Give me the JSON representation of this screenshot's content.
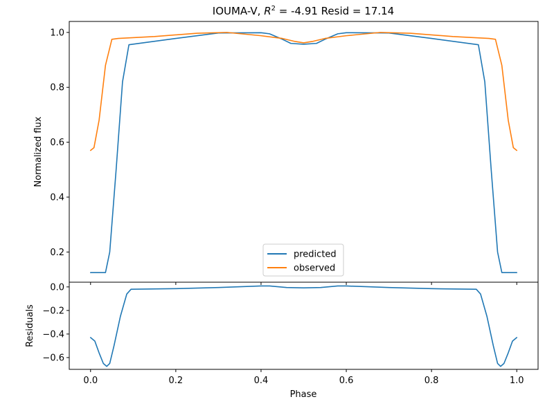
{
  "chart_data": [
    {
      "type": "line",
      "title": {
        "prefix": "IOUMA-V, ",
        "r_symbol": "R",
        "r_exponent": "2",
        "suffix": " = -4.91 Resid = 17.14"
      },
      "ylabel": "Normalized flux",
      "xlim": [
        -0.05,
        1.05
      ],
      "ylim": [
        0.09,
        1.04
      ],
      "x_ticks": [
        0.0,
        0.2,
        0.4,
        0.6,
        0.8,
        1.0
      ],
      "x_tick_labels": [
        "0.0",
        "0.2",
        "0.4",
        "0.6",
        "0.8",
        "1.0"
      ],
      "y_ticks": [
        0.2,
        0.4,
        0.6,
        0.8,
        1.0
      ],
      "y_tick_labels": [
        "0.2",
        "0.4",
        "0.6",
        "0.8",
        "1.0"
      ],
      "grid": false,
      "legend_position": "bottom-center",
      "series": [
        {
          "name": "predicted",
          "color": "#1f77b4",
          "x": [
            0.0,
            0.035,
            0.045,
            0.06,
            0.075,
            0.09,
            0.2,
            0.3,
            0.4,
            0.42,
            0.45,
            0.47,
            0.5,
            0.53,
            0.55,
            0.58,
            0.6,
            0.7,
            0.8,
            0.91,
            0.925,
            0.94,
            0.955,
            0.965,
            1.0
          ],
          "values": [
            0.125,
            0.125,
            0.2,
            0.5,
            0.82,
            0.955,
            0.978,
            0.998,
            0.999,
            0.995,
            0.975,
            0.96,
            0.957,
            0.96,
            0.975,
            0.995,
            0.999,
            0.998,
            0.978,
            0.955,
            0.82,
            0.5,
            0.2,
            0.125,
            0.125
          ]
        },
        {
          "name": "observed",
          "color": "#ff7f0e",
          "x": [
            0.0,
            0.008,
            0.02,
            0.035,
            0.05,
            0.065,
            0.15,
            0.25,
            0.32,
            0.4,
            0.45,
            0.48,
            0.5,
            0.52,
            0.55,
            0.6,
            0.68,
            0.75,
            0.85,
            0.935,
            0.95,
            0.965,
            0.98,
            0.992,
            1.0
          ],
          "values": [
            0.57,
            0.58,
            0.68,
            0.88,
            0.975,
            0.978,
            0.985,
            0.997,
            1.0,
            0.988,
            0.978,
            0.967,
            0.962,
            0.967,
            0.978,
            0.988,
            1.0,
            0.997,
            0.985,
            0.978,
            0.975,
            0.88,
            0.68,
            0.58,
            0.57
          ]
        }
      ]
    },
    {
      "type": "line",
      "xlabel": "Phase",
      "ylabel": "Residuals",
      "xlim": [
        -0.05,
        1.05
      ],
      "ylim": [
        -0.7,
        0.04
      ],
      "x_ticks": [
        0.0,
        0.2,
        0.4,
        0.6,
        0.8,
        1.0
      ],
      "x_tick_labels": [
        "0.0",
        "0.2",
        "0.4",
        "0.6",
        "0.8",
        "1.0"
      ],
      "y_ticks": [
        -0.6,
        -0.4,
        -0.2,
        0.0
      ],
      "y_tick_labels": [
        "−0.6",
        "−0.4",
        "−0.2",
        "0.0"
      ],
      "grid": false,
      "series": [
        {
          "color": "#1f77b4",
          "x": [
            0.0,
            0.01,
            0.02,
            0.03,
            0.038,
            0.045,
            0.055,
            0.07,
            0.085,
            0.095,
            0.2,
            0.3,
            0.4,
            0.42,
            0.46,
            0.5,
            0.54,
            0.58,
            0.6,
            0.7,
            0.8,
            0.905,
            0.915,
            0.93,
            0.945,
            0.955,
            0.962,
            0.97,
            0.98,
            0.99,
            1.0
          ],
          "values": [
            -0.43,
            -0.46,
            -0.56,
            -0.65,
            -0.675,
            -0.65,
            -0.5,
            -0.25,
            -0.06,
            -0.02,
            -0.015,
            -0.005,
            0.008,
            0.008,
            -0.005,
            -0.008,
            -0.005,
            0.008,
            0.008,
            -0.005,
            -0.015,
            -0.02,
            -0.06,
            -0.25,
            -0.5,
            -0.65,
            -0.675,
            -0.65,
            -0.56,
            -0.46,
            -0.43
          ]
        }
      ]
    }
  ]
}
